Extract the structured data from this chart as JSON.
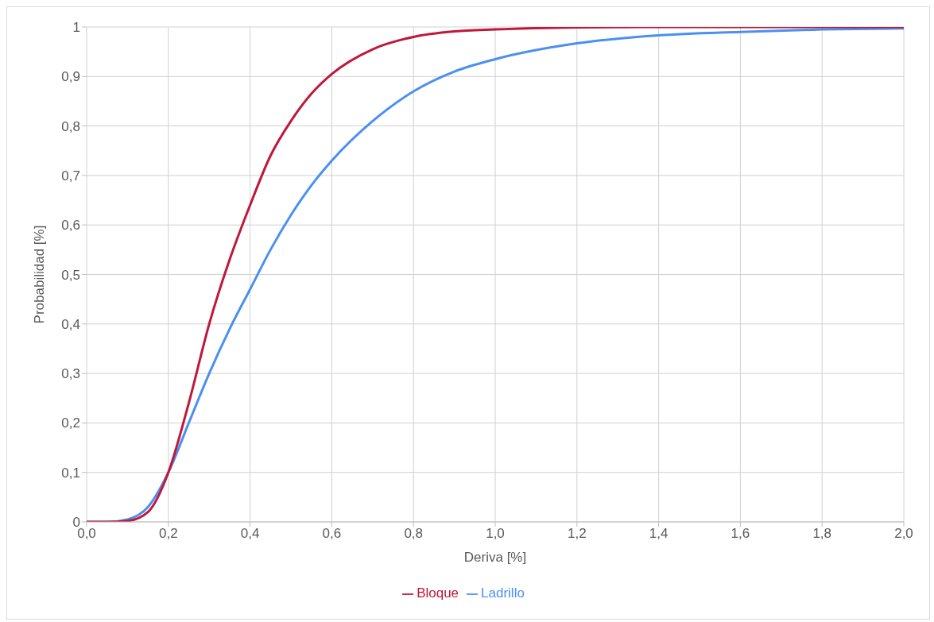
{
  "chart_data": {
    "type": "line",
    "xlabel": "Deriva [%]",
    "ylabel": "Probabilidad [%]",
    "x": [
      0,
      0.05,
      0.1,
      0.15,
      0.2,
      0.25,
      0.3,
      0.35,
      0.4,
      0.45,
      0.5,
      0.55,
      0.6,
      0.7,
      0.8,
      0.9,
      1.0,
      1.2,
      1.4,
      1.6,
      1.8,
      2.0
    ],
    "series": [
      {
        "name": "Ladrillo",
        "color": "#4a90f0",
        "values": [
          0,
          0,
          0.005,
          0.03,
          0.1,
          0.2,
          0.3,
          0.39,
          0.47,
          0.55,
          0.62,
          0.68,
          0.73,
          0.81,
          0.87,
          0.91,
          0.935,
          0.967,
          0.983,
          0.99,
          0.995,
          0.997
        ]
      },
      {
        "name": "Bloque",
        "color": "#c0183a",
        "values": [
          0,
          0,
          0.002,
          0.02,
          0.1,
          0.24,
          0.4,
          0.53,
          0.64,
          0.74,
          0.81,
          0.865,
          0.905,
          0.955,
          0.98,
          0.991,
          0.995,
          0.999,
          1,
          1,
          1,
          1
        ]
      }
    ],
    "xlim": [
      0,
      2
    ],
    "xticks": [
      {
        "value": 0,
        "label": "0,0"
      },
      {
        "value": 0.2,
        "label": "0,2"
      },
      {
        "value": 0.4,
        "label": "0,4"
      },
      {
        "value": 0.6,
        "label": "0,6"
      },
      {
        "value": 0.8,
        "label": "0,8"
      },
      {
        "value": 1,
        "label": "1,0"
      },
      {
        "value": 1.2,
        "label": "1,2"
      },
      {
        "value": 1.4,
        "label": "1,4"
      },
      {
        "value": 1.6,
        "label": "1,6"
      },
      {
        "value": 1.8,
        "label": "1,8"
      },
      {
        "value": 2,
        "label": "2,0"
      }
    ],
    "ylim": [
      0,
      1
    ],
    "yticks": [
      0,
      {
        "value": 0.1,
        "label": "0,1"
      },
      {
        "value": 0.2,
        "label": "0,2"
      },
      {
        "value": 0.3,
        "label": "0,3"
      },
      {
        "value": 0.4,
        "label": "0,4"
      },
      {
        "value": 0.5,
        "label": "0,5"
      },
      {
        "value": 0.6,
        "label": "0,6"
      },
      {
        "value": 0.7,
        "label": "0,7"
      },
      {
        "value": 0.8,
        "label": "0,8"
      },
      {
        "value": 0.9,
        "label": "0,9"
      },
      1
    ],
    "grid": true,
    "legend": "bottom",
    "marker": "none",
    "line_style": "solid"
  }
}
